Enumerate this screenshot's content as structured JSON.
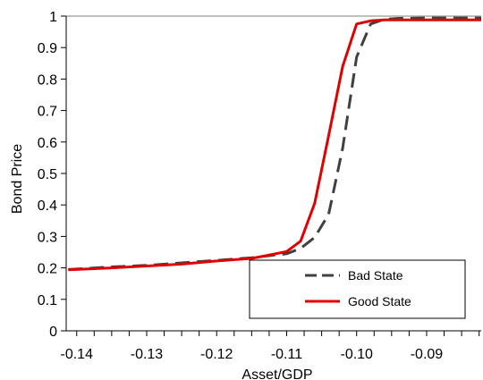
{
  "chart_data": {
    "type": "line",
    "title": "",
    "xlabel": "Asset/GDP",
    "ylabel": "Bond Price",
    "xlim": [
      -0.1415,
      -0.0822
    ],
    "ylim": [
      0,
      1
    ],
    "x_ticks": [
      -0.14,
      -0.13,
      -0.12,
      -0.11,
      -0.1,
      -0.09
    ],
    "x_tick_labels": [
      "-0.14",
      "-0.13",
      "-0.12",
      "-0.11",
      "-0.10",
      "-0.09"
    ],
    "y_ticks": [
      0,
      0.1,
      0.2,
      0.3,
      0.4,
      0.5,
      0.6,
      0.7,
      0.8,
      0.9,
      1
    ],
    "y_tick_labels": [
      "0",
      "0.1",
      "0.2",
      "0.3",
      "0.4",
      "0.5",
      "0.6",
      "0.7",
      "0.8",
      "0.9",
      "1"
    ],
    "grid": false,
    "legend_position": "bottom-right",
    "series": [
      {
        "name": "Bad State",
        "color": "#404040",
        "style": "dashed",
        "x": [
          -0.1412,
          -0.135,
          -0.13,
          -0.125,
          -0.12,
          -0.115,
          -0.112,
          -0.11,
          -0.108,
          -0.106,
          -0.104,
          -0.102,
          -0.1,
          -0.098,
          -0.096,
          -0.094,
          -0.09,
          -0.086,
          -0.0822
        ],
        "y": [
          0.195,
          0.203,
          0.208,
          0.216,
          0.224,
          0.232,
          0.24,
          0.245,
          0.262,
          0.297,
          0.37,
          0.58,
          0.87,
          0.975,
          0.99,
          0.993,
          0.994,
          0.994,
          0.994
        ]
      },
      {
        "name": "Good State",
        "color": "#e00000",
        "style": "solid",
        "x": [
          -0.1412,
          -0.135,
          -0.13,
          -0.125,
          -0.12,
          -0.115,
          -0.112,
          -0.11,
          -0.108,
          -0.106,
          -0.104,
          -0.102,
          -0.1,
          -0.098,
          -0.096,
          -0.094,
          -0.09,
          -0.086,
          -0.0822
        ],
        "y": [
          0.194,
          0.2,
          0.206,
          0.212,
          0.222,
          0.23,
          0.243,
          0.252,
          0.285,
          0.405,
          0.62,
          0.84,
          0.975,
          0.985,
          0.988,
          0.988,
          0.988,
          0.988,
          0.988
        ]
      }
    ]
  }
}
